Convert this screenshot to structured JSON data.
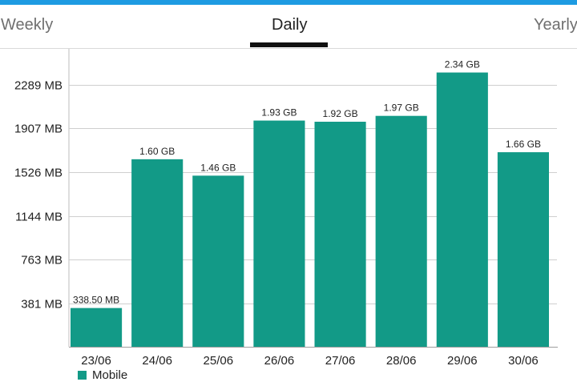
{
  "tabs": [
    {
      "label": "Weekly",
      "active": false
    },
    {
      "label": "Daily",
      "active": true
    },
    {
      "label": "Yearly",
      "active": false
    }
  ],
  "colors": {
    "accent": "#1e9be2",
    "series": "#129a87",
    "gridline": "#cfcfcf",
    "text": "#222222"
  },
  "chart_data": {
    "type": "bar",
    "title": "",
    "xlabel": "",
    "ylabel": "",
    "unit": "MB",
    "ylim": [
      0,
      2460
    ],
    "grid": true,
    "legend_position": "bottom-left",
    "y_ticks": [
      {
        "value": 381,
        "label": "381 MB"
      },
      {
        "value": 763,
        "label": "763 MB"
      },
      {
        "value": 1144,
        "label": "1144 MB"
      },
      {
        "value": 1526,
        "label": "1526 MB"
      },
      {
        "value": 1907,
        "label": "1907 MB"
      },
      {
        "value": 2289,
        "label": "2289 MB"
      }
    ],
    "categories": [
      "23/06",
      "24/06",
      "25/06",
      "26/06",
      "27/06",
      "28/06",
      "29/06",
      "30/06"
    ],
    "series": [
      {
        "name": "Mobile",
        "values": [
          338.5,
          1638.4,
          1495.0,
          1976.3,
          1966.1,
          2017.3,
          2396.2,
          1699.8
        ],
        "labels": [
          "338.50 MB",
          "1.60 GB",
          "1.46 GB",
          "1.93 GB",
          "1.92 GB",
          "1.97 GB",
          "2.34 GB",
          "1.66 GB"
        ]
      }
    ]
  }
}
